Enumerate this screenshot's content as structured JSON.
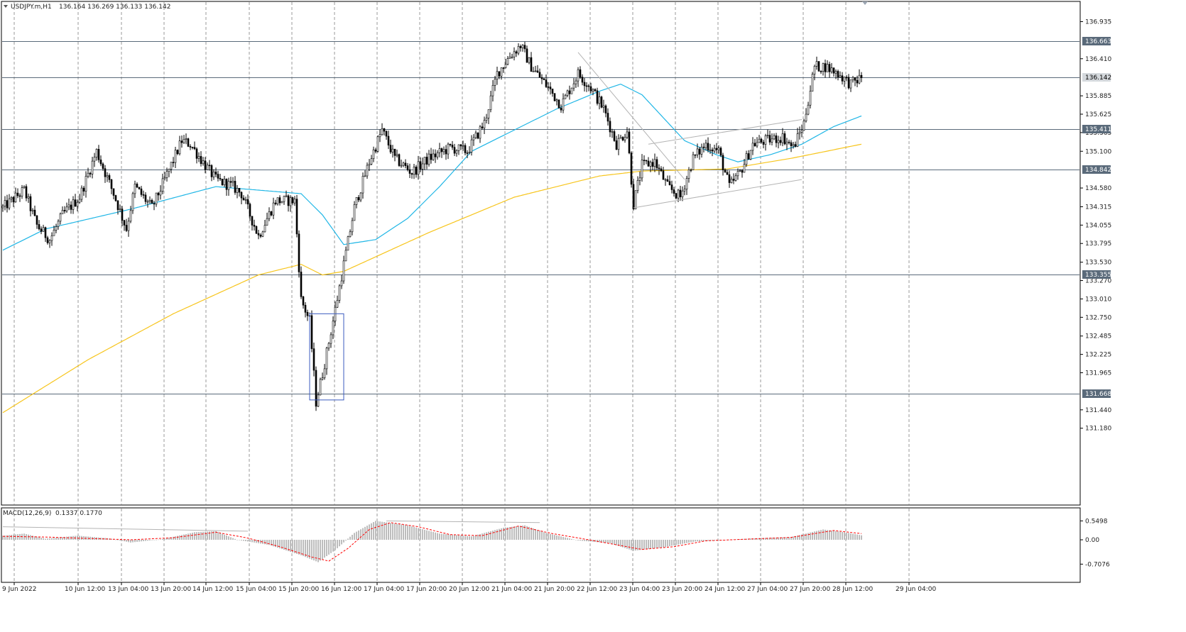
{
  "symbol_header": {
    "symbol": "USDJPY.m,H1",
    "ohlc": "136.164 136.269 136.133 136.142"
  },
  "indicator_header": {
    "name": "MACD(12,26,9)",
    "values": "0.1337 0.1770"
  },
  "colors": {
    "background": "#ffffff",
    "frame": "#000000",
    "grid": "#9a9a9a",
    "candle": "#000000",
    "ma_fast": "#1fb6e6",
    "ma_slow": "#f7c51c",
    "horizontal_levels": "#5a6a7a",
    "trendlines": "#b4b4b4",
    "box": "#3b5bbf",
    "macd_histogram": "#bdbdbd",
    "macd_signal": "#ff0000"
  },
  "price_axis": {
    "ticks": [
      "136.935",
      "136.410",
      "135.885",
      "135.625",
      "135.365",
      "135.100",
      "134.580",
      "134.315",
      "134.055",
      "133.795",
      "133.530",
      "133.270",
      "133.010",
      "132.750",
      "132.485",
      "132.225",
      "131.965",
      "131.440",
      "131.180"
    ],
    "level_labels": [
      "136.663",
      "136.142",
      "135.411",
      "134.842",
      "133.355",
      "131.668"
    ],
    "current_price": "136.142"
  },
  "macd_axis": {
    "ticks": [
      "0.5498",
      "0.00",
      "-0.7076"
    ]
  },
  "time_axis": {
    "labels": [
      "9 Jun 2022",
      "10 Jun 12:00",
      "13 Jun 04:00",
      "13 Jun 20:00",
      "14 Jun 12:00",
      "15 Jun 04:00",
      "15 Jun 20:00",
      "16 Jun 12:00",
      "17 Jun 04:00",
      "17 Jun 20:00",
      "20 Jun 12:00",
      "21 Jun 04:00",
      "21 Jun 20:00",
      "22 Jun 12:00",
      "23 Jun 04:00",
      "23 Jun 20:00",
      "24 Jun 12:00",
      "27 Jun 04:00",
      "27 Jun 20:00",
      "28 Jun 12:00",
      "29 Jun 04:00"
    ]
  },
  "chart_data": {
    "type": "candlestick",
    "timeframe": "H1",
    "price_range": [
      131.15,
      137.0
    ],
    "grid": true,
    "horizontal_levels": [
      136.663,
      136.142,
      135.411,
      134.842,
      133.355,
      131.668
    ],
    "price_path_keypoints": [
      {
        "bar": 0,
        "price": 134.3
      },
      {
        "bar": 10,
        "price": 134.55
      },
      {
        "bar": 16,
        "price": 134.05
      },
      {
        "bar": 22,
        "price": 133.85
      },
      {
        "bar": 28,
        "price": 134.2
      },
      {
        "bar": 36,
        "price": 134.45
      },
      {
        "bar": 44,
        "price": 135.1
      },
      {
        "bar": 52,
        "price": 134.5
      },
      {
        "bar": 58,
        "price": 134.0
      },
      {
        "bar": 62,
        "price": 134.6
      },
      {
        "bar": 70,
        "price": 134.3
      },
      {
        "bar": 76,
        "price": 134.7
      },
      {
        "bar": 84,
        "price": 135.25
      },
      {
        "bar": 88,
        "price": 135.2
      },
      {
        "bar": 95,
        "price": 134.9
      },
      {
        "bar": 100,
        "price": 134.7
      },
      {
        "bar": 108,
        "price": 134.6
      },
      {
        "bar": 112,
        "price": 134.5
      },
      {
        "bar": 120,
        "price": 133.9
      },
      {
        "bar": 128,
        "price": 134.4
      },
      {
        "bar": 137,
        "price": 134.4
      },
      {
        "bar": 140,
        "price": 133.0
      },
      {
        "bar": 144,
        "price": 132.7
      },
      {
        "bar": 147,
        "price": 131.55
      },
      {
        "bar": 150,
        "price": 131.95
      },
      {
        "bar": 155,
        "price": 132.7
      },
      {
        "bar": 160,
        "price": 133.5
      },
      {
        "bar": 165,
        "price": 134.3
      },
      {
        "bar": 172,
        "price": 134.95
      },
      {
        "bar": 178,
        "price": 135.4
      },
      {
        "bar": 184,
        "price": 135.0
      },
      {
        "bar": 192,
        "price": 134.8
      },
      {
        "bar": 200,
        "price": 135.0
      },
      {
        "bar": 210,
        "price": 135.15
      },
      {
        "bar": 218,
        "price": 135.1
      },
      {
        "bar": 226,
        "price": 135.5
      },
      {
        "bar": 232,
        "price": 136.2
      },
      {
        "bar": 238,
        "price": 136.45
      },
      {
        "bar": 243,
        "price": 136.6
      },
      {
        "bar": 248,
        "price": 136.3
      },
      {
        "bar": 256,
        "price": 136.0
      },
      {
        "bar": 262,
        "price": 135.75
      },
      {
        "bar": 270,
        "price": 136.2
      },
      {
        "bar": 276,
        "price": 136.0
      },
      {
        "bar": 282,
        "price": 135.7
      },
      {
        "bar": 288,
        "price": 135.2
      },
      {
        "bar": 293,
        "price": 135.4
      },
      {
        "bar": 296,
        "price": 134.35
      },
      {
        "bar": 300,
        "price": 134.9
      },
      {
        "bar": 306,
        "price": 134.95
      },
      {
        "bar": 312,
        "price": 134.6
      },
      {
        "bar": 318,
        "price": 134.45
      },
      {
        "bar": 324,
        "price": 135.0
      },
      {
        "bar": 330,
        "price": 135.2
      },
      {
        "bar": 336,
        "price": 135.1
      },
      {
        "bar": 341,
        "price": 134.6
      },
      {
        "bar": 346,
        "price": 134.8
      },
      {
        "bar": 352,
        "price": 135.2
      },
      {
        "bar": 358,
        "price": 135.25
      },
      {
        "bar": 366,
        "price": 135.3
      },
      {
        "bar": 371,
        "price": 135.15
      },
      {
        "bar": 376,
        "price": 135.5
      },
      {
        "bar": 381,
        "price": 136.3
      },
      {
        "bar": 386,
        "price": 136.3
      },
      {
        "bar": 392,
        "price": 136.2
      },
      {
        "bar": 398,
        "price": 136.05
      },
      {
        "bar": 403,
        "price": 136.142
      }
    ],
    "ma_fast": [
      {
        "bar": 0,
        "price": 133.7
      },
      {
        "bar": 20,
        "price": 134.0
      },
      {
        "bar": 60,
        "price": 134.28
      },
      {
        "bar": 100,
        "price": 134.6
      },
      {
        "bar": 120,
        "price": 134.55
      },
      {
        "bar": 140,
        "price": 134.5
      },
      {
        "bar": 150,
        "price": 134.2
      },
      {
        "bar": 160,
        "price": 133.78
      },
      {
        "bar": 175,
        "price": 133.85
      },
      {
        "bar": 190,
        "price": 134.15
      },
      {
        "bar": 205,
        "price": 134.6
      },
      {
        "bar": 220,
        "price": 135.1
      },
      {
        "bar": 240,
        "price": 135.4
      },
      {
        "bar": 260,
        "price": 135.7
      },
      {
        "bar": 280,
        "price": 135.95
      },
      {
        "bar": 290,
        "price": 136.05
      },
      {
        "bar": 300,
        "price": 135.9
      },
      {
        "bar": 320,
        "price": 135.25
      },
      {
        "bar": 335,
        "price": 135.05
      },
      {
        "bar": 345,
        "price": 134.95
      },
      {
        "bar": 360,
        "price": 135.05
      },
      {
        "bar": 375,
        "price": 135.2
      },
      {
        "bar": 390,
        "price": 135.45
      },
      {
        "bar": 403,
        "price": 135.6
      }
    ],
    "ma_slow": [
      {
        "bar": 0,
        "price": 131.4
      },
      {
        "bar": 40,
        "price": 132.15
      },
      {
        "bar": 80,
        "price": 132.8
      },
      {
        "bar": 120,
        "price": 133.35
      },
      {
        "bar": 140,
        "price": 133.5
      },
      {
        "bar": 150,
        "price": 133.35
      },
      {
        "bar": 160,
        "price": 133.4
      },
      {
        "bar": 200,
        "price": 133.95
      },
      {
        "bar": 240,
        "price": 134.45
      },
      {
        "bar": 280,
        "price": 134.75
      },
      {
        "bar": 300,
        "price": 134.82
      },
      {
        "bar": 340,
        "price": 134.85
      },
      {
        "bar": 370,
        "price": 135.0
      },
      {
        "bar": 403,
        "price": 135.2
      }
    ],
    "macd_histogram": [
      {
        "bar": 0,
        "value": 0.12
      },
      {
        "bar": 10,
        "value": 0.18
      },
      {
        "bar": 20,
        "value": 0.03
      },
      {
        "bar": 35,
        "value": 0.12
      },
      {
        "bar": 50,
        "value": 0.04
      },
      {
        "bar": 60,
        "value": -0.08
      },
      {
        "bar": 75,
        "value": 0.02
      },
      {
        "bar": 90,
        "value": 0.22
      },
      {
        "bar": 100,
        "value": 0.25
      },
      {
        "bar": 110,
        "value": 0.0
      },
      {
        "bar": 125,
        "value": -0.15
      },
      {
        "bar": 140,
        "value": -0.45
      },
      {
        "bar": 148,
        "value": -0.65
      },
      {
        "bar": 156,
        "value": -0.3
      },
      {
        "bar": 165,
        "value": 0.2
      },
      {
        "bar": 175,
        "value": 0.55
      },
      {
        "bar": 190,
        "value": 0.42
      },
      {
        "bar": 205,
        "value": 0.18
      },
      {
        "bar": 220,
        "value": 0.1
      },
      {
        "bar": 235,
        "value": 0.35
      },
      {
        "bar": 245,
        "value": 0.42
      },
      {
        "bar": 255,
        "value": 0.2
      },
      {
        "bar": 270,
        "value": -0.02
      },
      {
        "bar": 285,
        "value": -0.1
      },
      {
        "bar": 296,
        "value": -0.32
      },
      {
        "bar": 310,
        "value": -0.22
      },
      {
        "bar": 325,
        "value": -0.05
      },
      {
        "bar": 340,
        "value": 0.0
      },
      {
        "bar": 355,
        "value": 0.05
      },
      {
        "bar": 370,
        "value": 0.08
      },
      {
        "bar": 385,
        "value": 0.3
      },
      {
        "bar": 395,
        "value": 0.22
      },
      {
        "bar": 403,
        "value": 0.13
      }
    ],
    "macd_signal": [
      {
        "bar": 0,
        "value": 0.1
      },
      {
        "bar": 20,
        "value": 0.08
      },
      {
        "bar": 40,
        "value": 0.04
      },
      {
        "bar": 60,
        "value": 0.0
      },
      {
        "bar": 80,
        "value": 0.06
      },
      {
        "bar": 100,
        "value": 0.22
      },
      {
        "bar": 115,
        "value": 0.05
      },
      {
        "bar": 130,
        "value": -0.2
      },
      {
        "bar": 145,
        "value": -0.5
      },
      {
        "bar": 153,
        "value": -0.62
      },
      {
        "bar": 162,
        "value": -0.25
      },
      {
        "bar": 172,
        "value": 0.3
      },
      {
        "bar": 182,
        "value": 0.5
      },
      {
        "bar": 195,
        "value": 0.38
      },
      {
        "bar": 210,
        "value": 0.15
      },
      {
        "bar": 225,
        "value": 0.12
      },
      {
        "bar": 242,
        "value": 0.4
      },
      {
        "bar": 258,
        "value": 0.18
      },
      {
        "bar": 275,
        "value": 0.0
      },
      {
        "bar": 300,
        "value": -0.28
      },
      {
        "bar": 315,
        "value": -0.2
      },
      {
        "bar": 330,
        "value": -0.03
      },
      {
        "bar": 350,
        "value": 0.02
      },
      {
        "bar": 370,
        "value": 0.07
      },
      {
        "bar": 390,
        "value": 0.27
      },
      {
        "bar": 403,
        "value": 0.18
      }
    ],
    "trendlines": [
      {
        "from": {
          "bar": 270,
          "price": 136.5
        },
        "to": {
          "bar": 320,
          "price": 134.7
        }
      },
      {
        "from": {
          "bar": 303,
          "price": 135.2
        },
        "to": {
          "bar": 375,
          "price": 135.55
        }
      },
      {
        "from": {
          "bar": 296,
          "price": 134.3
        },
        "to": {
          "bar": 375,
          "price": 134.7
        }
      }
    ],
    "macd_trendlines": [
      {
        "from": {
          "bar": 0,
          "value": 0.38
        },
        "to": {
          "bar": 115,
          "value": 0.25
        }
      },
      {
        "from": {
          "bar": 180,
          "value": 0.55
        },
        "to": {
          "bar": 252,
          "value": 0.5
        }
      }
    ],
    "box": {
      "bar_start": 144,
      "bar_end": 160,
      "price_top": 132.8,
      "price_bottom": 131.58
    }
  }
}
